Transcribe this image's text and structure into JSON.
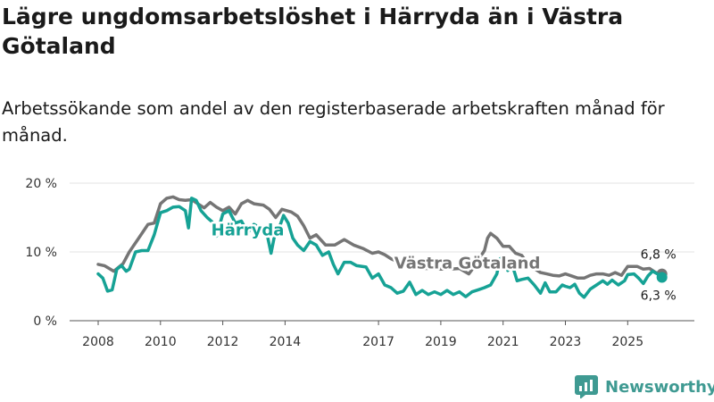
{
  "title": "Lägre ungdomsarbetslöshet i Härryda än i Västra Götaland",
  "subtitle": "Arbetssökande som andel av den registerbaserade arbetskraften månad för månad.",
  "brand": "Newsworthy",
  "colors": {
    "harryda": "#16a295",
    "vg": "#757575",
    "grid": "#e3e3e3",
    "brand": "#3f9a92"
  },
  "chart_data": {
    "type": "line",
    "title": "Lägre ungdomsarbetslöshet i Härryda än i Västra Götaland",
    "xlabel": "",
    "ylabel": "",
    "ylim": [
      0,
      20
    ],
    "grid": true,
    "y_ticks": [
      0,
      10,
      20
    ],
    "y_tick_labels": [
      "0 %",
      "10 %",
      "20 %"
    ],
    "x_ticks": [
      2008,
      2010,
      2012,
      2014,
      2017,
      2019,
      2021,
      2023,
      2025
    ],
    "x_tick_labels": [
      "2008",
      "2010",
      "2012",
      "2014",
      "2017",
      "2019",
      "2021",
      "2023",
      "2025"
    ],
    "series": [
      {
        "name": "Västra Götaland",
        "color": "#757575",
        "label_at": [
          2019.85,
          7.6
        ],
        "end_value_label": "6,8 %",
        "points": [
          [
            2008.0,
            8.2
          ],
          [
            2008.2,
            8.0
          ],
          [
            2008.5,
            7.2
          ],
          [
            2008.8,
            8.3
          ],
          [
            2009.0,
            10.0
          ],
          [
            2009.3,
            12.0
          ],
          [
            2009.6,
            14.0
          ],
          [
            2009.8,
            14.2
          ],
          [
            2010.0,
            17.0
          ],
          [
            2010.2,
            17.8
          ],
          [
            2010.4,
            18.0
          ],
          [
            2010.6,
            17.6
          ],
          [
            2010.8,
            17.5
          ],
          [
            2011.0,
            17.6
          ],
          [
            2011.2,
            17.0
          ],
          [
            2011.4,
            16.4
          ],
          [
            2011.6,
            17.2
          ],
          [
            2011.8,
            16.5
          ],
          [
            2012.0,
            16.0
          ],
          [
            2012.2,
            16.5
          ],
          [
            2012.4,
            15.5
          ],
          [
            2012.6,
            17.0
          ],
          [
            2012.8,
            17.5
          ],
          [
            2013.0,
            17.0
          ],
          [
            2013.3,
            16.8
          ],
          [
            2013.5,
            16.2
          ],
          [
            2013.7,
            15.0
          ],
          [
            2013.9,
            16.2
          ],
          [
            2014.2,
            15.8
          ],
          [
            2014.4,
            15.2
          ],
          [
            2014.6,
            13.8
          ],
          [
            2014.8,
            12.0
          ],
          [
            2015.0,
            12.5
          ],
          [
            2015.3,
            11.0
          ],
          [
            2015.6,
            11.0
          ],
          [
            2015.9,
            11.8
          ],
          [
            2016.2,
            11.0
          ],
          [
            2016.5,
            10.5
          ],
          [
            2016.8,
            9.8
          ],
          [
            2017.0,
            10.0
          ],
          [
            2017.2,
            9.6
          ],
          [
            2017.4,
            9.0
          ],
          [
            2017.6,
            8.6
          ],
          [
            2017.8,
            8.0
          ],
          [
            2018.0,
            8.0
          ],
          [
            2018.2,
            8.0
          ],
          [
            2018.5,
            7.6
          ],
          [
            2018.8,
            7.6
          ],
          [
            2019.0,
            7.5
          ],
          [
            2019.3,
            7.5
          ],
          [
            2019.6,
            7.6
          ],
          [
            2019.9,
            6.8
          ],
          [
            2020.0,
            7.4
          ],
          [
            2020.2,
            8.8
          ],
          [
            2020.4,
            10.2
          ],
          [
            2020.5,
            12.0
          ],
          [
            2020.6,
            12.7
          ],
          [
            2020.8,
            12.0
          ],
          [
            2021.0,
            10.8
          ],
          [
            2021.2,
            10.8
          ],
          [
            2021.4,
            9.8
          ],
          [
            2021.6,
            9.5
          ],
          [
            2021.8,
            8.2
          ],
          [
            2022.0,
            7.6
          ],
          [
            2022.2,
            7.0
          ],
          [
            2022.4,
            6.8
          ],
          [
            2022.6,
            6.6
          ],
          [
            2022.8,
            6.5
          ],
          [
            2023.0,
            6.8
          ],
          [
            2023.2,
            6.5
          ],
          [
            2023.4,
            6.2
          ],
          [
            2023.6,
            6.2
          ],
          [
            2023.8,
            6.6
          ],
          [
            2024.0,
            6.8
          ],
          [
            2024.2,
            6.8
          ],
          [
            2024.4,
            6.6
          ],
          [
            2024.6,
            7.0
          ],
          [
            2024.8,
            6.6
          ],
          [
            2025.0,
            7.9
          ],
          [
            2025.3,
            7.9
          ],
          [
            2025.5,
            7.5
          ],
          [
            2025.7,
            7.6
          ],
          [
            2025.9,
            7.0
          ],
          [
            2026.1,
            6.8
          ]
        ]
      },
      {
        "name": "Härryda",
        "color": "#16a295",
        "label_at": [
          2012.8,
          12.4
        ],
        "end_value_label": "6,3 %",
        "points": [
          [
            2008.0,
            6.8
          ],
          [
            2008.15,
            6.2
          ],
          [
            2008.3,
            4.3
          ],
          [
            2008.45,
            4.5
          ],
          [
            2008.6,
            7.5
          ],
          [
            2008.75,
            8.0
          ],
          [
            2008.9,
            7.2
          ],
          [
            2009.0,
            7.5
          ],
          [
            2009.2,
            10.0
          ],
          [
            2009.4,
            10.2
          ],
          [
            2009.6,
            10.2
          ],
          [
            2009.8,
            12.5
          ],
          [
            2010.0,
            15.7
          ],
          [
            2010.2,
            16.0
          ],
          [
            2010.4,
            16.5
          ],
          [
            2010.6,
            16.6
          ],
          [
            2010.8,
            16.0
          ],
          [
            2010.9,
            13.5
          ],
          [
            2011.0,
            17.8
          ],
          [
            2011.15,
            17.5
          ],
          [
            2011.3,
            16.0
          ],
          [
            2011.5,
            15.0
          ],
          [
            2011.65,
            14.4
          ],
          [
            2011.8,
            12.3
          ],
          [
            2012.0,
            15.5
          ],
          [
            2012.2,
            16.0
          ],
          [
            2012.4,
            14.2
          ],
          [
            2012.6,
            14.5
          ],
          [
            2012.8,
            12.8
          ],
          [
            2013.0,
            14.0
          ],
          [
            2013.2,
            13.5
          ],
          [
            2013.4,
            13.0
          ],
          [
            2013.55,
            9.8
          ],
          [
            2013.7,
            13.2
          ],
          [
            2013.85,
            14.0
          ],
          [
            2013.95,
            15.3
          ],
          [
            2014.1,
            14.2
          ],
          [
            2014.25,
            12.0
          ],
          [
            2014.4,
            11.0
          ],
          [
            2014.6,
            10.2
          ],
          [
            2014.8,
            11.5
          ],
          [
            2015.0,
            11.0
          ],
          [
            2015.2,
            9.5
          ],
          [
            2015.4,
            10.0
          ],
          [
            2015.55,
            8.2
          ],
          [
            2015.7,
            6.8
          ],
          [
            2015.9,
            8.5
          ],
          [
            2016.1,
            8.5
          ],
          [
            2016.3,
            8.0
          ],
          [
            2016.6,
            7.8
          ],
          [
            2016.8,
            6.2
          ],
          [
            2017.0,
            6.8
          ],
          [
            2017.2,
            5.2
          ],
          [
            2017.4,
            4.8
          ],
          [
            2017.6,
            4.0
          ],
          [
            2017.8,
            4.3
          ],
          [
            2018.0,
            5.6
          ],
          [
            2018.2,
            3.8
          ],
          [
            2018.4,
            4.4
          ],
          [
            2018.6,
            3.8
          ],
          [
            2018.8,
            4.2
          ],
          [
            2019.0,
            3.8
          ],
          [
            2019.2,
            4.4
          ],
          [
            2019.4,
            3.8
          ],
          [
            2019.6,
            4.2
          ],
          [
            2019.8,
            3.5
          ],
          [
            2020.0,
            4.2
          ],
          [
            2020.2,
            4.5
          ],
          [
            2020.4,
            4.8
          ],
          [
            2020.6,
            5.2
          ],
          [
            2020.8,
            6.8
          ],
          [
            2020.9,
            9.0
          ],
          [
            2021.0,
            9.3
          ],
          [
            2021.15,
            7.3
          ],
          [
            2021.3,
            8.0
          ],
          [
            2021.45,
            5.8
          ],
          [
            2021.6,
            6.0
          ],
          [
            2021.8,
            6.2
          ],
          [
            2022.0,
            5.2
          ],
          [
            2022.2,
            4.0
          ],
          [
            2022.35,
            5.5
          ],
          [
            2022.5,
            4.2
          ],
          [
            2022.7,
            4.2
          ],
          [
            2022.9,
            5.2
          ],
          [
            2023.0,
            5.0
          ],
          [
            2023.15,
            4.8
          ],
          [
            2023.3,
            5.3
          ],
          [
            2023.45,
            4.0
          ],
          [
            2023.6,
            3.4
          ],
          [
            2023.8,
            4.6
          ],
          [
            2024.0,
            5.2
          ],
          [
            2024.2,
            5.8
          ],
          [
            2024.35,
            5.3
          ],
          [
            2024.5,
            5.9
          ],
          [
            2024.7,
            5.2
          ],
          [
            2024.9,
            5.8
          ],
          [
            2025.0,
            6.7
          ],
          [
            2025.2,
            6.8
          ],
          [
            2025.35,
            6.2
          ],
          [
            2025.5,
            5.4
          ],
          [
            2025.65,
            6.5
          ],
          [
            2025.8,
            7.2
          ],
          [
            2025.95,
            6.8
          ],
          [
            2026.1,
            6.3
          ]
        ]
      }
    ]
  }
}
